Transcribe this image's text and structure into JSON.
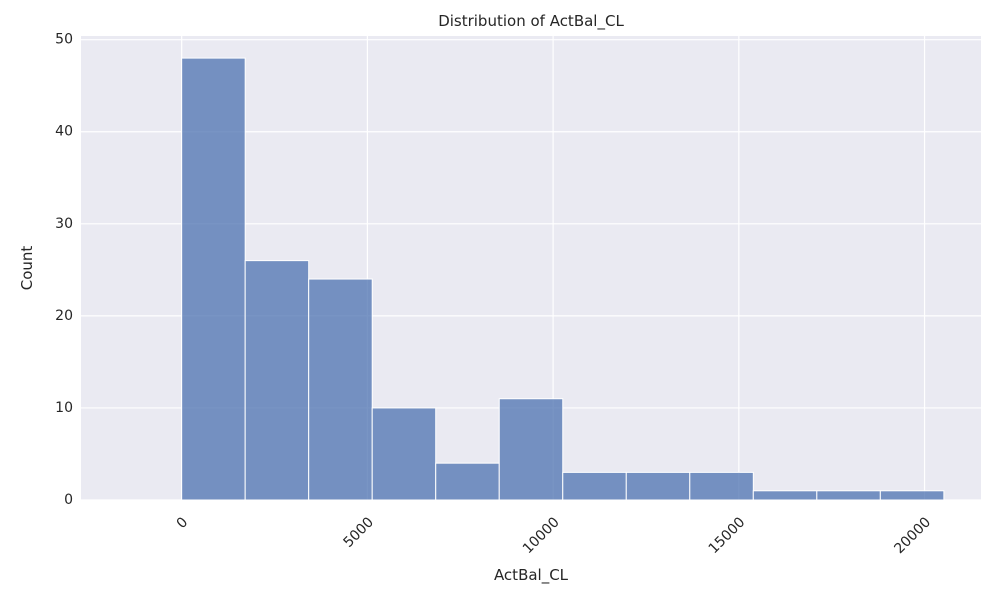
{
  "chart_data": {
    "type": "bar",
    "title": "Distribution of ActBal_CL",
    "xlabel": "ActBal_CL",
    "ylabel": "Count",
    "bin_edges": [
      0,
      1710,
      3420,
      5130,
      6840,
      8550,
      10260,
      11970,
      13680,
      15390,
      17100,
      18810,
      20520
    ],
    "values": [
      48,
      26,
      24,
      10,
      4,
      11,
      3,
      3,
      3,
      1,
      1,
      1
    ],
    "xlim": [
      -2710,
      21520
    ],
    "ylim": [
      0,
      50.4
    ],
    "xticks": [
      0,
      5000,
      10000,
      15000,
      20000
    ],
    "xtick_labels": [
      "0",
      "5000",
      "10000",
      "15000",
      "20000"
    ],
    "yticks": [
      0,
      10,
      20,
      30,
      40,
      50
    ],
    "ytick_labels": [
      "0",
      "10",
      "20",
      "30",
      "40",
      "50"
    ],
    "grid": true,
    "colors": {
      "background": "#eaeaf2",
      "bar": "#4c72b0",
      "grid": "#ffffff"
    }
  }
}
